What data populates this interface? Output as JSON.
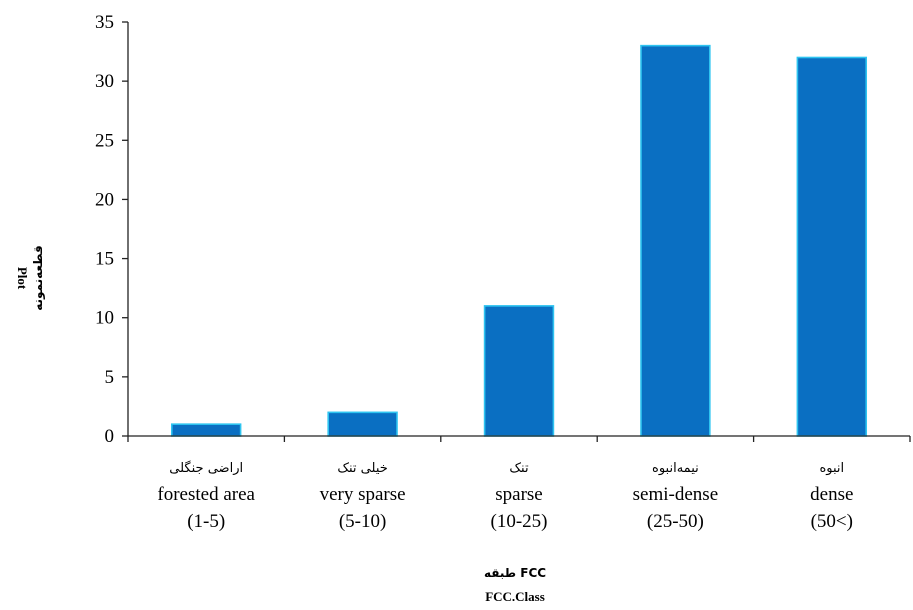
{
  "chart_data": {
    "type": "bar",
    "categories": [
      {
        "fa": "اراضی جنگلی",
        "en": "forested area",
        "range": "(1-5)"
      },
      {
        "fa": "خیلی تنک",
        "en": "very sparse",
        "range": "(5-10)"
      },
      {
        "fa": "تنک",
        "en": "sparse",
        "range": "(10-25)"
      },
      {
        "fa": "نیمه‌انبوه",
        "en": "semi-dense",
        "range": "(25-50)"
      },
      {
        "fa": "انبوه",
        "en": "dense",
        "range": "(50<)"
      }
    ],
    "values": [
      1,
      2,
      11,
      33,
      32
    ],
    "ylim": [
      0,
      35
    ],
    "yticks": [
      "0",
      "5",
      "10",
      "15",
      "20",
      "25",
      "30",
      "35"
    ],
    "xlabel_fa": "طبقه FCC",
    "xlabel_en": "FCC.Class",
    "ylabel_en": "Plot",
    "ylabel_fa": "قطعه‌نمونه",
    "bar_color": "#0a6fc2",
    "bar_edge_color": "#2ec4f0",
    "grid": false,
    "legend": "none"
  }
}
